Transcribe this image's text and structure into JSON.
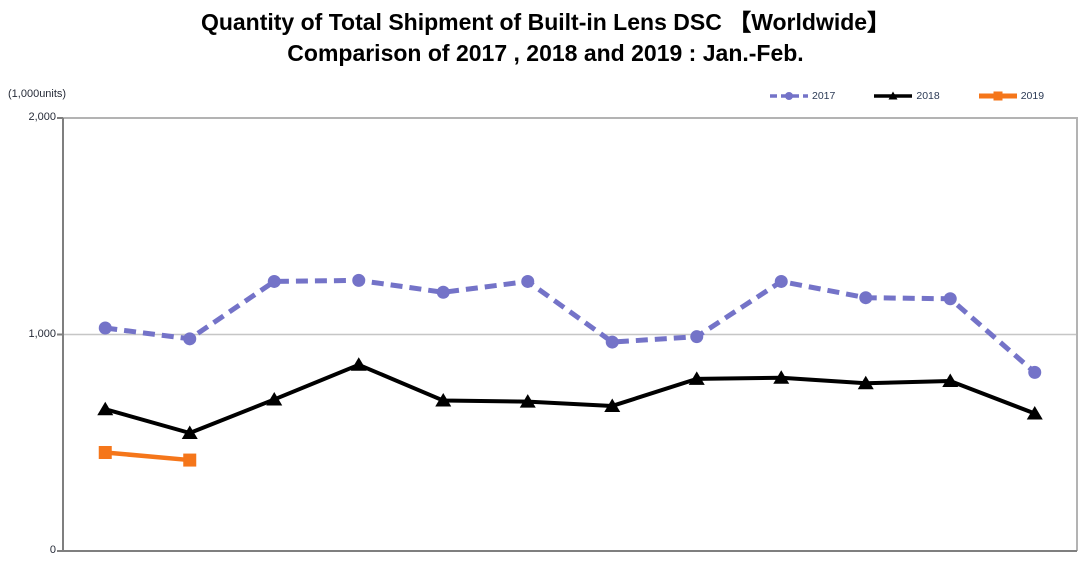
{
  "page": {
    "background": "#ffffff"
  },
  "title": {
    "line1": "Quantity of Total Shipment of Built-in Lens DSC 【Worldwide】",
    "line2": "Comparison of 2017 , 2018 and 2019 : Jan.-Feb."
  },
  "y_axis": {
    "unit_label": "(1,000units)",
    "ticks": [
      {
        "label": "2,000",
        "value": 2000
      },
      {
        "label": "1,000",
        "value": 1000
      },
      {
        "label": "0",
        "value": 0
      }
    ]
  },
  "colors": {
    "series_2017": "#7473c8",
    "series_2018": "#000000",
    "series_2019": "#f5761a",
    "axis_line": "#7f7f7f",
    "frame_line": "#b3b3b3",
    "gridline": "#c6c6c6",
    "tick_text": "#262b38",
    "legend_text": "#2b3a55",
    "title_text": "#000000"
  },
  "chart_data": {
    "type": "line",
    "title": "Quantity of Total Shipment of Built-in Lens DSC 【Worldwide】 Comparison of 2017 , 2018 and 2019 : Jan.-Feb.",
    "ylabel": "(1,000units)",
    "ylim": [
      0,
      2000
    ],
    "y_tick_values": [
      0,
      1000,
      2000
    ],
    "y_gridlines": [
      1000
    ],
    "x_points": 12,
    "x_tick_labels_shown": false,
    "legend_position": "top-right",
    "grid": "horizontal-only",
    "series": [
      {
        "name": "2017",
        "style": "dashed",
        "marker": "circle",
        "color": "#7473c8",
        "values": [
          1030,
          980,
          1245,
          1250,
          1195,
          1245,
          965,
          990,
          1245,
          1170,
          1165,
          825
        ]
      },
      {
        "name": "2018",
        "style": "solid",
        "marker": "triangle",
        "color": "#000000",
        "values": [
          655,
          545,
          700,
          860,
          695,
          690,
          670,
          795,
          800,
          775,
          785,
          635
        ]
      },
      {
        "name": "2019",
        "style": "solid",
        "marker": "square",
        "color": "#f5761a",
        "values": [
          455,
          420
        ]
      }
    ]
  }
}
